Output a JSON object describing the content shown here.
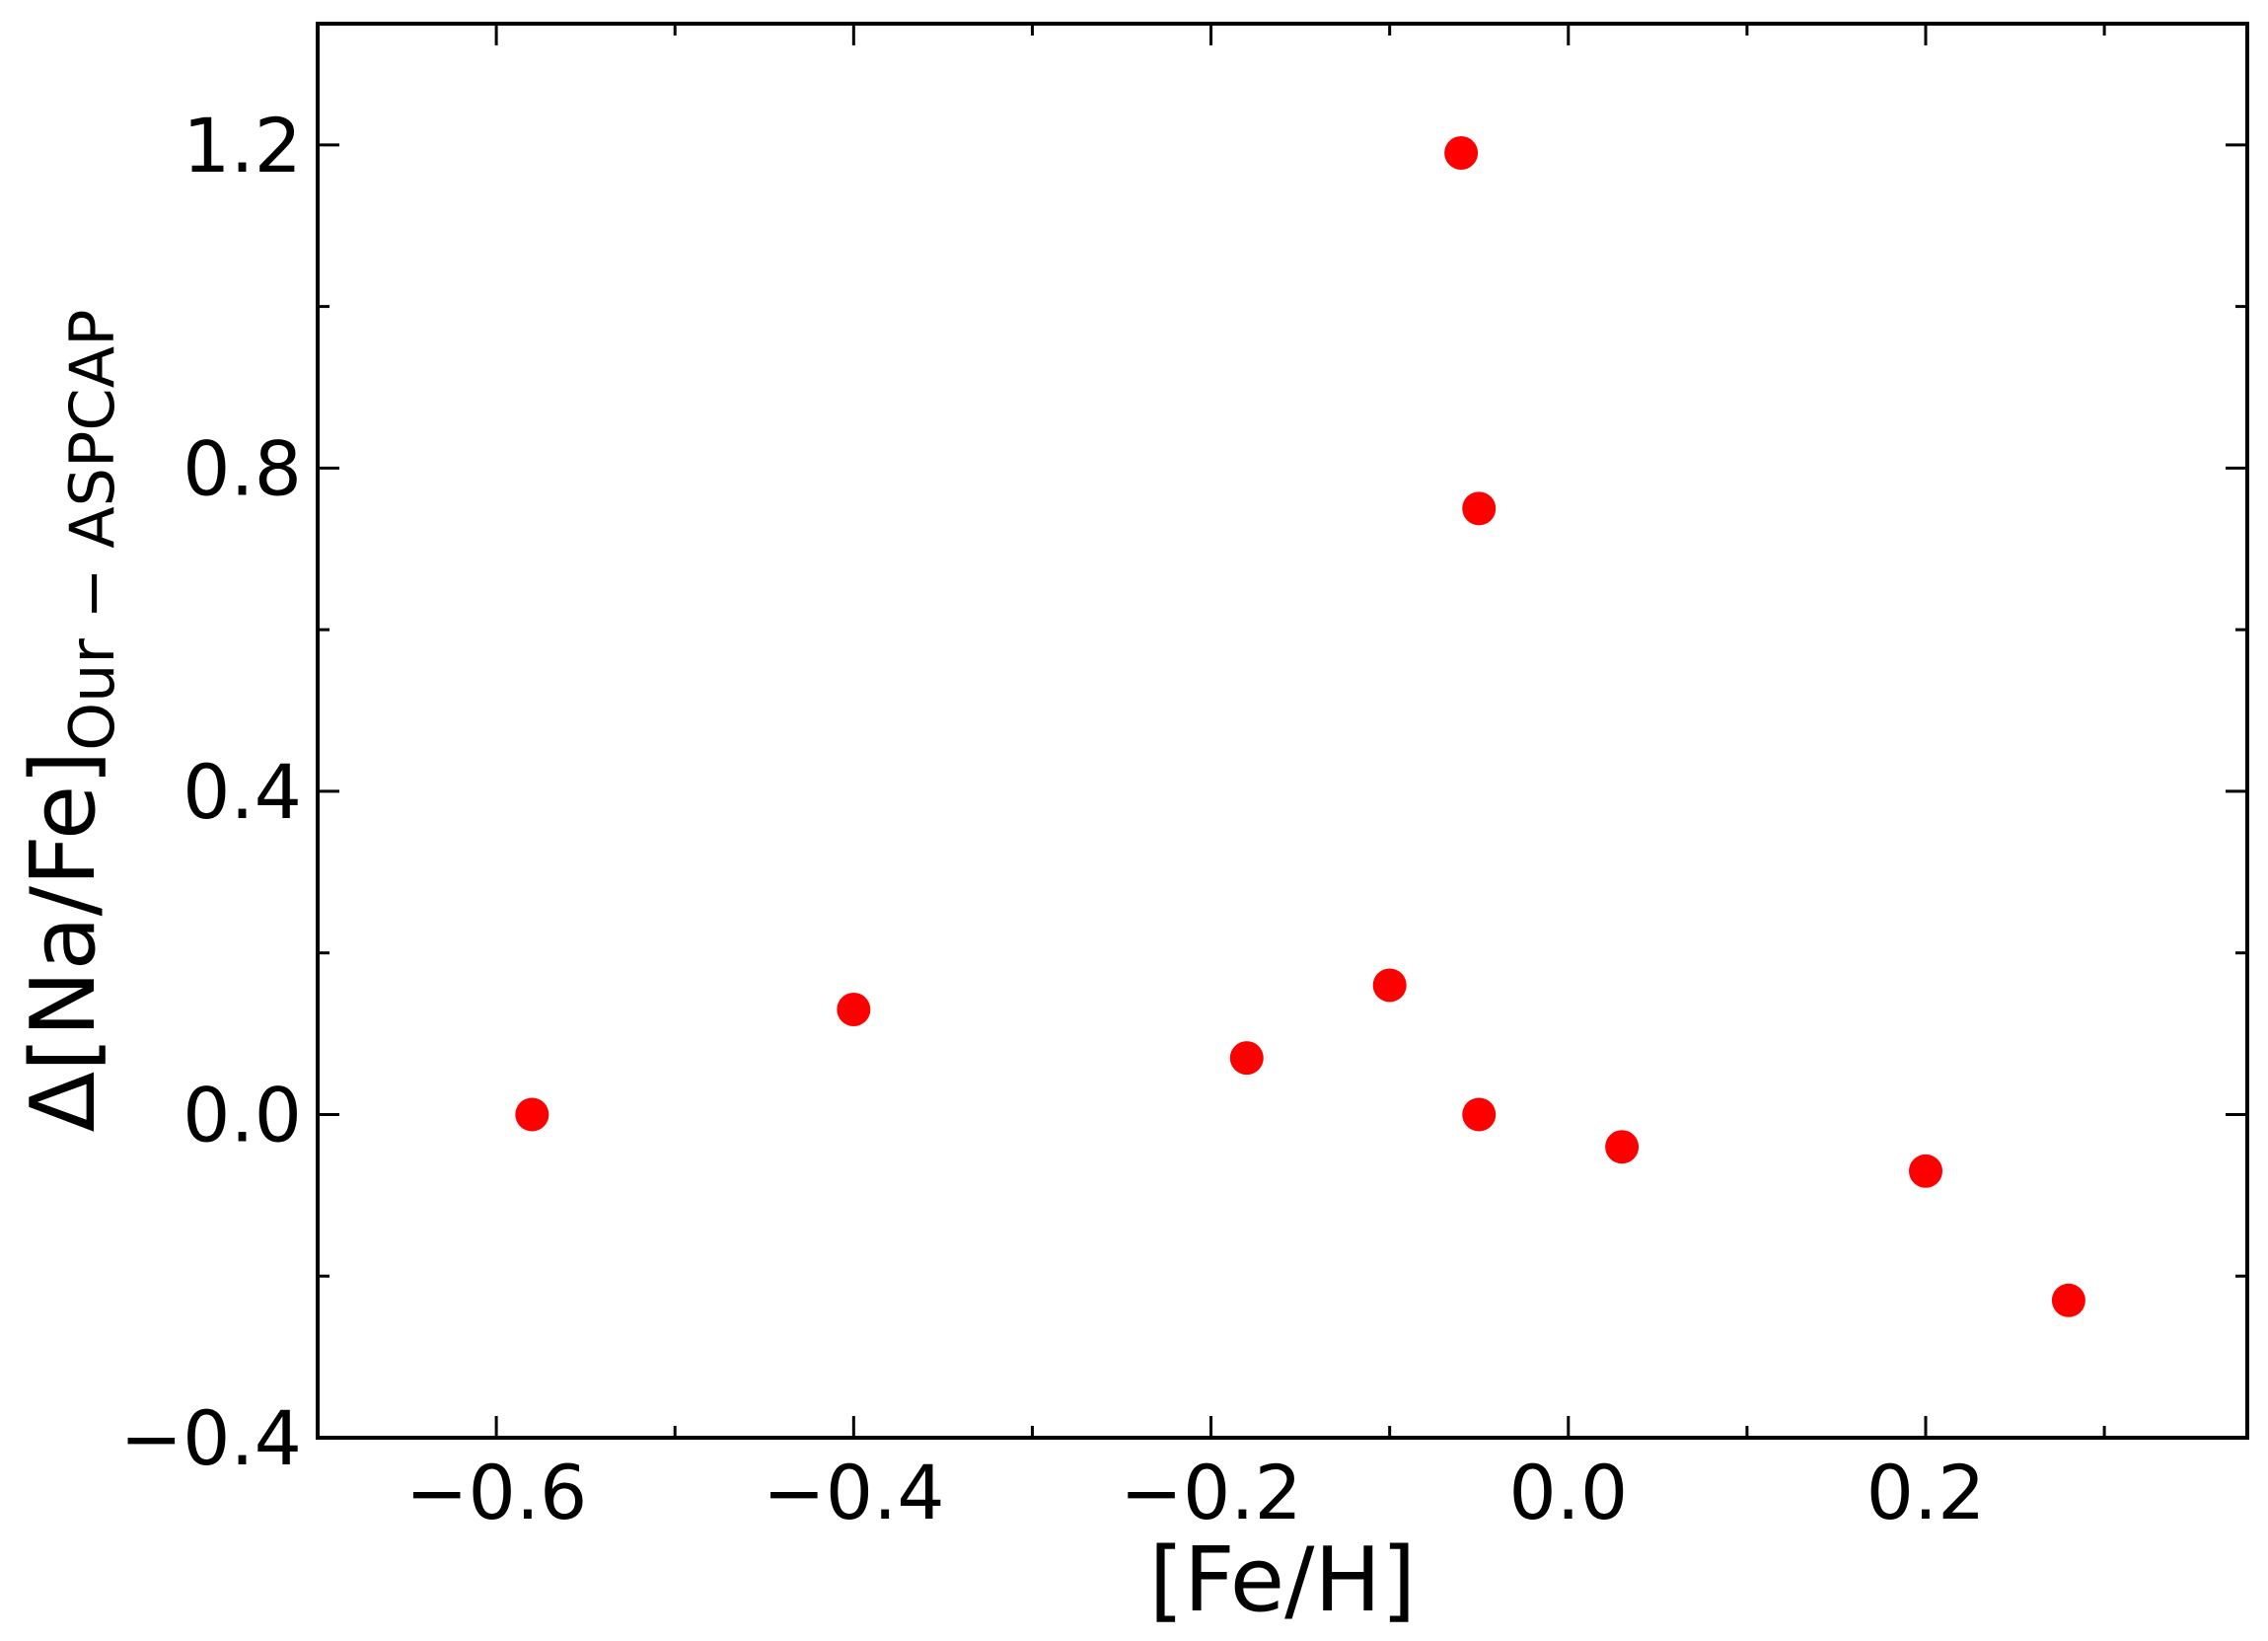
{
  "chart_data": {
    "type": "scatter",
    "xlabel": "[Fe/H]",
    "ylabel": {
      "main": "Δ[Na/Fe]",
      "subscript": "Our − ASPCAP"
    },
    "xlim": [
      -0.7,
      0.38
    ],
    "ylim": [
      -0.4,
      1.35
    ],
    "x_ticks": [
      {
        "value": -0.6,
        "label": "−0.6"
      },
      {
        "value": -0.4,
        "label": "−0.4"
      },
      {
        "value": -0.2,
        "label": "−0.2"
      },
      {
        "value": 0.0,
        "label": "0.0"
      },
      {
        "value": 0.2,
        "label": "0.2"
      }
    ],
    "x_minor_ticks": [
      -0.5,
      -0.3,
      -0.1,
      0.1,
      0.3
    ],
    "y_ticks": [
      {
        "value": -0.4,
        "label": "−0.4"
      },
      {
        "value": 0.0,
        "label": "0.0"
      },
      {
        "value": 0.4,
        "label": "0.4"
      },
      {
        "value": 0.8,
        "label": "0.8"
      },
      {
        "value": 1.2,
        "label": "1.2"
      }
    ],
    "y_minor_ticks": [
      -0.2,
      0.2,
      0.6,
      1.0
    ],
    "grid": false,
    "marker_color": "#ff0000",
    "series": [
      {
        "points": [
          {
            "x": -0.58,
            "y": 0.0
          },
          {
            "x": -0.4,
            "y": 0.13
          },
          {
            "x": -0.18,
            "y": 0.07
          },
          {
            "x": -0.1,
            "y": 0.16
          },
          {
            "x": -0.06,
            "y": 1.19
          },
          {
            "x": -0.05,
            "y": 0.75
          },
          {
            "x": -0.05,
            "y": 0.0
          },
          {
            "x": 0.03,
            "y": -0.04
          },
          {
            "x": 0.2,
            "y": -0.07
          },
          {
            "x": 0.28,
            "y": -0.23
          }
        ]
      }
    ]
  }
}
